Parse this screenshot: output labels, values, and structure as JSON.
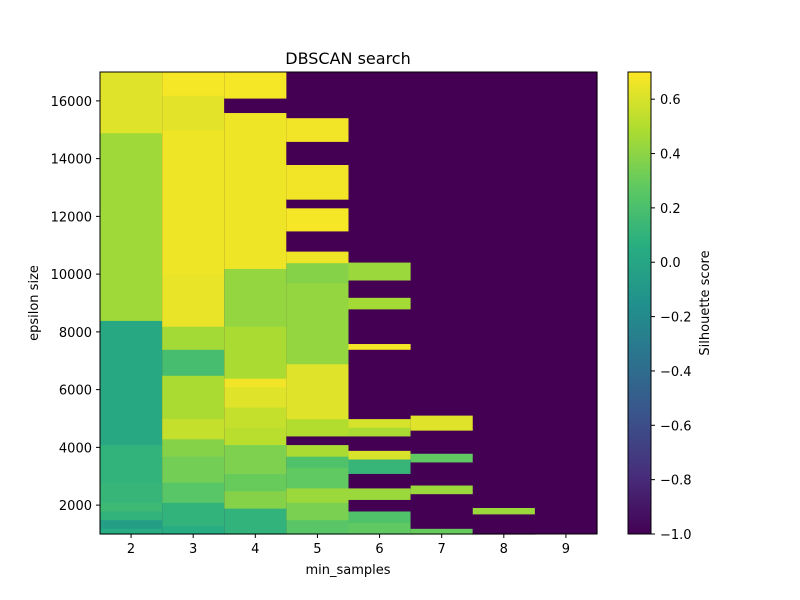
{
  "chart_data": {
    "type": "heatmap",
    "title": "DBSCAN search",
    "xlabel": "min_samples",
    "ylabel": "epsilon size",
    "colorbar_label": "Silhouette score",
    "colormap": "viridis",
    "x_categories": [
      2,
      3,
      4,
      5,
      6,
      7,
      8,
      9
    ],
    "x_tick_labels": [
      "2",
      "3",
      "4",
      "5",
      "6",
      "7",
      "8",
      "9"
    ],
    "ylim": [
      1000,
      17000
    ],
    "y_ticks": [
      2000,
      4000,
      6000,
      8000,
      10000,
      12000,
      14000,
      16000
    ],
    "y_tick_labels": [
      "2000",
      "4000",
      "6000",
      "8000",
      "10000",
      "12000",
      "14000",
      "16000"
    ],
    "color_range": [
      -1.0,
      0.7
    ],
    "colorbar_ticks": [
      0.6,
      0.4,
      0.2,
      0.0,
      -0.2,
      -0.4,
      -0.6,
      -0.8,
      -1.0
    ],
    "colorbar_tick_labels": [
      "0.6",
      "0.4",
      "0.2",
      "0.0",
      "−0.2",
      "−0.4",
      "−0.6",
      "−0.8",
      "−1.0"
    ],
    "default_value": -1.0,
    "columns": [
      {
        "x": 2,
        "segments": [
          [
            1000,
            1200,
            0.05
          ],
          [
            1200,
            1500,
            -0.05
          ],
          [
            1500,
            1800,
            0.1
          ],
          [
            1800,
            2100,
            0.15
          ],
          [
            2100,
            2800,
            0.12
          ],
          [
            2800,
            4100,
            0.1
          ],
          [
            4100,
            8400,
            0.02
          ],
          [
            8400,
            14900,
            0.45
          ],
          [
            14900,
            17000,
            0.62
          ]
        ]
      },
      {
        "x": 3,
        "segments": [
          [
            1000,
            1300,
            0.05
          ],
          [
            1300,
            2100,
            0.1
          ],
          [
            2100,
            2800,
            0.25
          ],
          [
            2800,
            3700,
            0.33
          ],
          [
            3700,
            4300,
            0.38
          ],
          [
            4300,
            5000,
            0.55
          ],
          [
            5000,
            6500,
            0.48
          ],
          [
            6500,
            7400,
            0.18
          ],
          [
            7400,
            8200,
            0.46
          ],
          [
            8200,
            10000,
            0.65
          ],
          [
            10000,
            15000,
            0.66
          ],
          [
            15000,
            16200,
            0.63
          ],
          [
            16200,
            17000,
            0.68
          ]
        ]
      },
      {
        "x": 4,
        "segments": [
          [
            1000,
            1900,
            0.1
          ],
          [
            1900,
            2500,
            0.38
          ],
          [
            2500,
            3100,
            0.3
          ],
          [
            3100,
            4100,
            0.36
          ],
          [
            4100,
            4700,
            0.52
          ],
          [
            4700,
            5400,
            0.55
          ],
          [
            5400,
            6100,
            0.62
          ],
          [
            6100,
            6400,
            0.67
          ],
          [
            6400,
            8200,
            0.48
          ],
          [
            8200,
            10200,
            0.42
          ],
          [
            10200,
            15600,
            0.66
          ],
          [
            15600,
            16100,
            -1.0
          ],
          [
            16100,
            17000,
            0.68
          ]
        ]
      },
      {
        "x": 5,
        "segments": [
          [
            1000,
            1500,
            0.25
          ],
          [
            1500,
            2100,
            0.35
          ],
          [
            2100,
            2600,
            0.44
          ],
          [
            2600,
            3300,
            0.28
          ],
          [
            3300,
            3700,
            0.22
          ],
          [
            3700,
            4100,
            0.48
          ],
          [
            4100,
            4400,
            -1.0
          ],
          [
            4400,
            5000,
            0.5
          ],
          [
            5000,
            6900,
            0.62
          ],
          [
            6900,
            9700,
            0.42
          ],
          [
            9700,
            10400,
            0.38
          ],
          [
            10400,
            10800,
            0.66
          ],
          [
            10800,
            11500,
            -1.0
          ],
          [
            11500,
            12300,
            0.68
          ],
          [
            12300,
            12600,
            -1.0
          ],
          [
            12600,
            13800,
            0.67
          ],
          [
            13800,
            14600,
            -1.0
          ],
          [
            14600,
            15400,
            0.67
          ]
        ]
      },
      {
        "x": 6,
        "segments": [
          [
            1000,
            1400,
            0.28
          ],
          [
            1400,
            1800,
            0.22
          ],
          [
            1800,
            2200,
            -1.0
          ],
          [
            2200,
            2600,
            0.44
          ],
          [
            2600,
            3100,
            -1.0
          ],
          [
            3100,
            3600,
            0.12
          ],
          [
            3600,
            3900,
            0.6
          ],
          [
            3900,
            4400,
            -1.0
          ],
          [
            4400,
            4700,
            0.48
          ],
          [
            4700,
            5000,
            0.6
          ],
          [
            5000,
            7400,
            -1.0
          ],
          [
            7400,
            7600,
            0.68
          ],
          [
            7600,
            8800,
            -1.0
          ],
          [
            8800,
            9200,
            0.46
          ],
          [
            9200,
            9800,
            -1.0
          ],
          [
            9800,
            10400,
            0.44
          ]
        ]
      },
      {
        "x": 7,
        "segments": [
          [
            1000,
            1200,
            0.3
          ],
          [
            1200,
            2400,
            -1.0
          ],
          [
            2400,
            2700,
            0.44
          ],
          [
            2700,
            3500,
            -1.0
          ],
          [
            3500,
            3800,
            0.28
          ],
          [
            3800,
            4600,
            -1.0
          ],
          [
            4600,
            5100,
            0.62
          ]
        ]
      },
      {
        "x": 8,
        "segments": [
          [
            1000,
            1700,
            -1.0
          ],
          [
            1700,
            1900,
            0.44
          ]
        ]
      },
      {
        "x": 9,
        "segments": []
      }
    ]
  }
}
